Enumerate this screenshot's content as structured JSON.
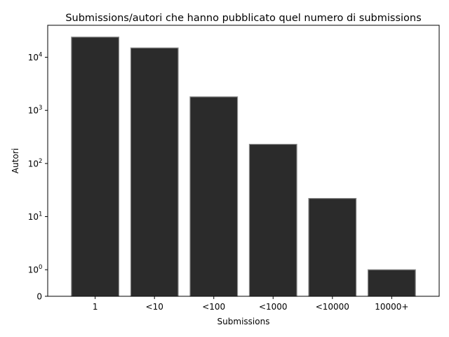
{
  "chart_data": {
    "type": "bar",
    "title": "Submissions/autori che hanno pubblicato quel numero di submissions",
    "xlabel": "Submissions",
    "ylabel": "Autori",
    "categories": [
      "1",
      "<10",
      "<100",
      "<1000",
      "<10000",
      "10000+"
    ],
    "values": [
      24000,
      15000,
      1800,
      230,
      22,
      1
    ],
    "yscale": "symlog",
    "yticks": [
      {
        "value": 0,
        "base": "0",
        "exp": ""
      },
      {
        "value": 1,
        "base": "10",
        "exp": "0"
      },
      {
        "value": 10,
        "base": "10",
        "exp": "1"
      },
      {
        "value": 100,
        "base": "10",
        "exp": "2"
      },
      {
        "value": 1000,
        "base": "10",
        "exp": "3"
      },
      {
        "value": 10000,
        "base": "10",
        "exp": "4"
      }
    ],
    "ylim": [
      0,
      40000
    ],
    "bar_color": "#2b2b2b",
    "bar_edge_color": "#8c8c8c",
    "grid": false,
    "legend": "none"
  }
}
